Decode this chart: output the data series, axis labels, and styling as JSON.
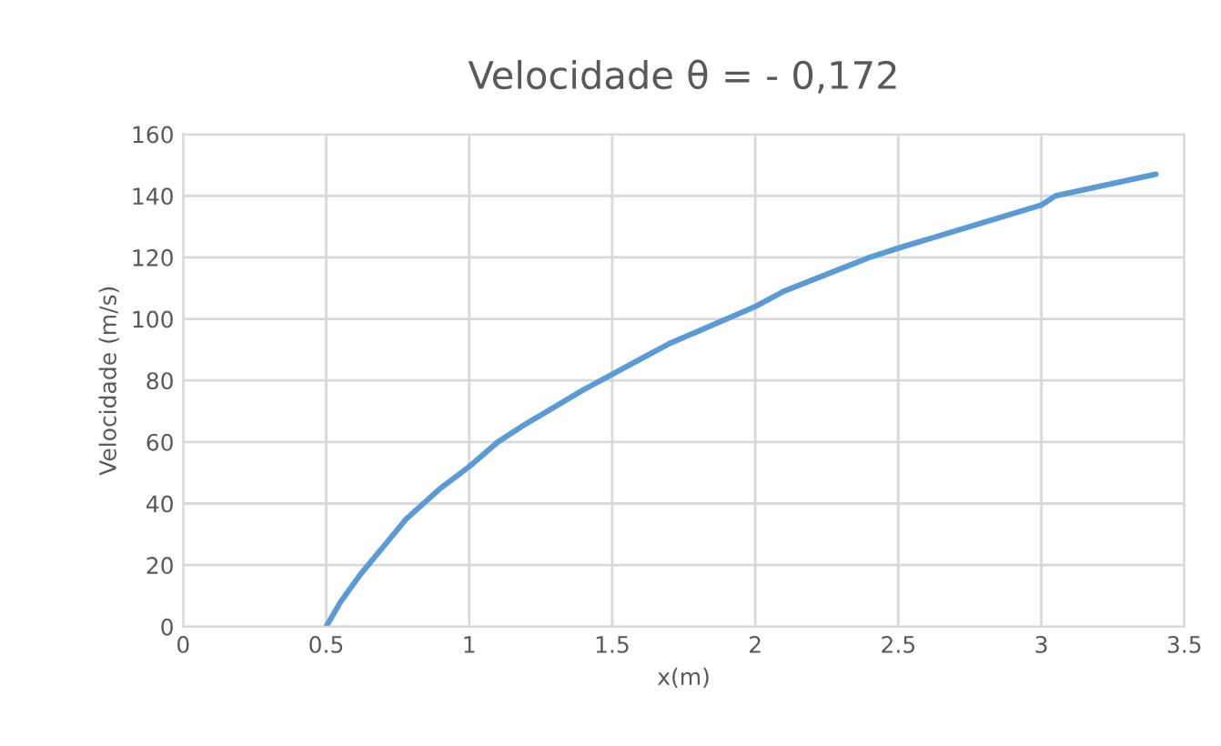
{
  "chart_data": {
    "type": "line",
    "title": "Velocidade θ = - 0,172",
    "xlabel": "x(m)",
    "ylabel": "Velocidade (m/s)",
    "series": [
      {
        "color": "#5b9bd5",
        "x": [
          0.5,
          0.55,
          0.62,
          0.7,
          0.78,
          0.9,
          1.0,
          1.1,
          1.2,
          1.4,
          1.6,
          1.7,
          2.0,
          2.1,
          2.4,
          2.5,
          3.0,
          3.05,
          3.4
        ],
        "values": [
          0,
          8,
          17,
          26,
          35,
          45,
          52,
          60,
          66,
          77,
          87,
          92,
          104,
          109,
          120,
          123,
          137,
          140,
          147
        ]
      }
    ],
    "xlim": [
      0,
      3.5
    ],
    "xticks": [
      0,
      {
        "value": 0.5,
        "label": "0.5"
      },
      1,
      {
        "value": 1.5,
        "label": "1.5"
      },
      2,
      {
        "value": 2.5,
        "label": "2.5"
      },
      3,
      {
        "value": 3.5,
        "label": "3.5"
      }
    ],
    "ylim": [
      0,
      160
    ],
    "yticks": [
      0,
      20,
      40,
      60,
      80,
      100,
      120,
      140,
      160
    ],
    "grid": true,
    "line_style": "solid"
  }
}
